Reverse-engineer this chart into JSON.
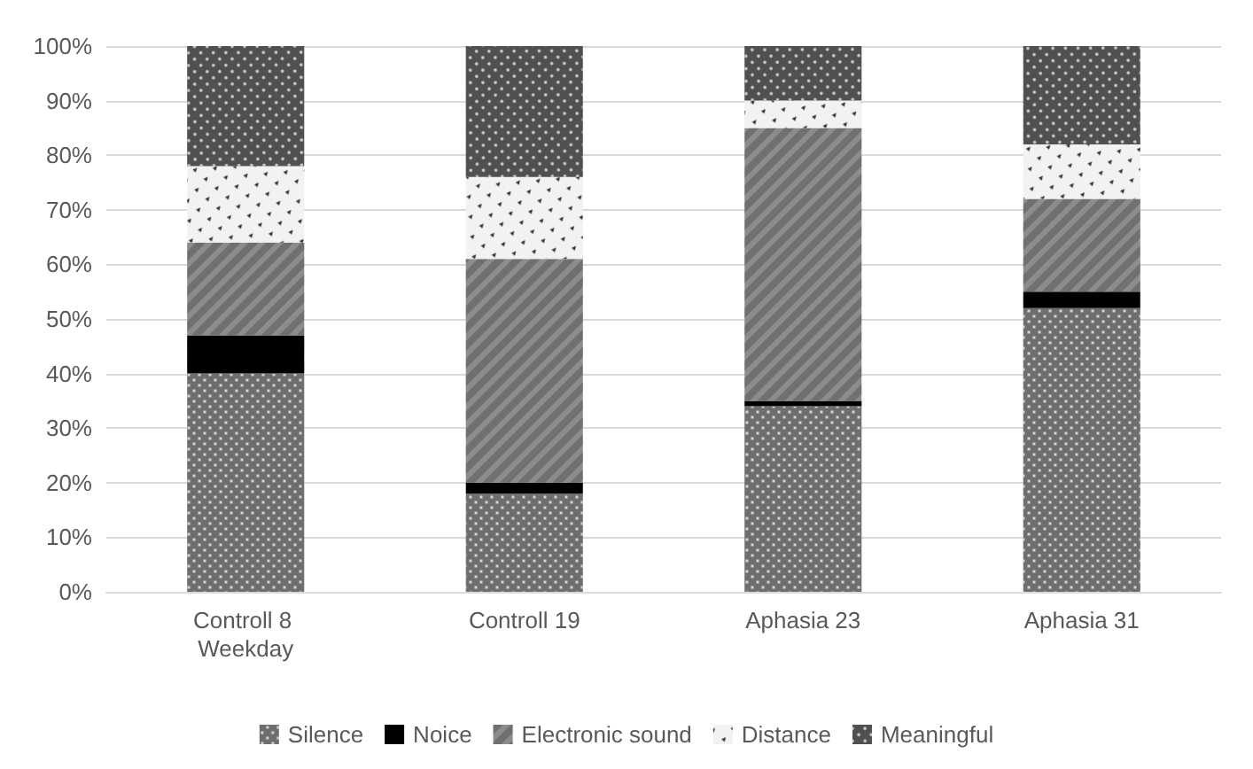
{
  "chart_data": {
    "type": "bar",
    "stacked": true,
    "categories": [
      "Controll 8 Weekday",
      "Controll 19",
      "Aphasia 23",
      "Aphasia 31"
    ],
    "series": [
      {
        "name": "Silence",
        "color": "#6e6e6e",
        "values": [
          40,
          18,
          34,
          52
        ]
      },
      {
        "name": "Noice",
        "color": "#000000",
        "values": [
          7,
          2,
          1,
          3
        ]
      },
      {
        "name": "Electronic sound",
        "color": "#8c8c8c",
        "values": [
          17,
          41,
          50,
          17
        ]
      },
      {
        "name": "Distance",
        "color": "#f2f2f2",
        "values": [
          14,
          15,
          5,
          10
        ]
      },
      {
        "name": "Meaningful",
        "color": "#505050",
        "values": [
          22,
          24,
          10,
          18
        ]
      }
    ],
    "ylim": [
      0,
      100
    ],
    "yticks": [
      {
        "value": 0,
        "label": "0%"
      },
      {
        "value": 10,
        "label": "10%"
      },
      {
        "value": 20,
        "label": "20%"
      },
      {
        "value": 30,
        "label": "30%"
      },
      {
        "value": 40,
        "label": "40%"
      },
      {
        "value": 50,
        "label": "50%"
      },
      {
        "value": 60,
        "label": "60%"
      },
      {
        "value": 70,
        "label": "70%"
      },
      {
        "value": 80,
        "label": "80%"
      },
      {
        "value": 90,
        "label": "90%"
      },
      {
        "value": 100,
        "label": "100%"
      }
    ],
    "grid": "y",
    "legend": "bottom"
  }
}
